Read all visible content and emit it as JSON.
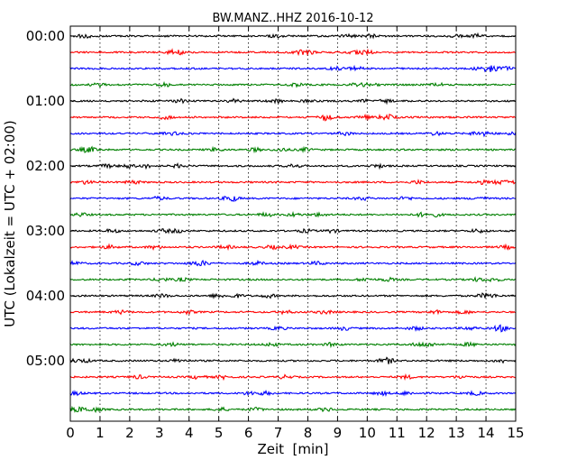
{
  "chart_data": {
    "type": "line",
    "title": "BW.MANZ..HHZ 2016-10-12",
    "xlabel": "Zeit  [min]",
    "ylabel": "UTC (Lokalzeit = UTC + 02:00)",
    "x_ticks": [
      "0",
      "1",
      "2",
      "3",
      "4",
      "5",
      "6",
      "7",
      "8",
      "9",
      "10",
      "11",
      "12",
      "13",
      "14",
      "15"
    ],
    "xlim": [
      0,
      15
    ],
    "y_hour_labels": [
      "00:00",
      "01:00",
      "02:00",
      "03:00",
      "04:00",
      "05:00"
    ],
    "row_minutes": 15,
    "colors": [
      "#000000",
      "#ff0000",
      "#0000ff",
      "#008000"
    ],
    "grid": true,
    "series": [
      {
        "start": "00:00"
      },
      {
        "start": "00:15"
      },
      {
        "start": "00:30"
      },
      {
        "start": "00:45"
      },
      {
        "start": "01:00"
      },
      {
        "start": "01:15"
      },
      {
        "start": "01:30"
      },
      {
        "start": "01:45"
      },
      {
        "start": "02:00"
      },
      {
        "start": "02:15"
      },
      {
        "start": "02:30"
      },
      {
        "start": "02:45"
      },
      {
        "start": "03:00"
      },
      {
        "start": "03:15"
      },
      {
        "start": "03:30"
      },
      {
        "start": "03:45"
      },
      {
        "start": "04:00"
      },
      {
        "start": "04:15"
      },
      {
        "start": "04:30"
      },
      {
        "start": "04:45"
      },
      {
        "start": "05:00"
      },
      {
        "start": "05:15"
      },
      {
        "start": "05:30"
      },
      {
        "start": "05:45"
      }
    ]
  }
}
